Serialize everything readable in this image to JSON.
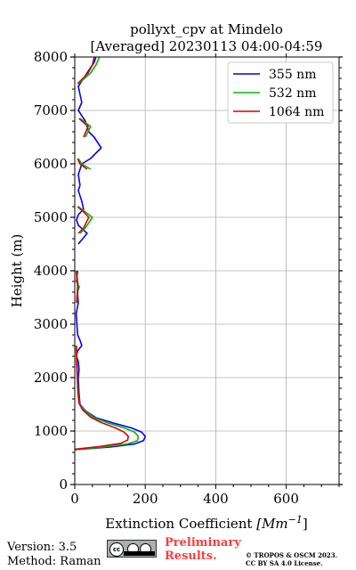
{
  "chart_data": {
    "type": "line",
    "title": "pollyxt_cpv at Mindelo",
    "subtitle": "[Averaged] 20230113 04:00-04:59",
    "xlabel_prefix": "Extinction Coefficient ",
    "xlabel_unit": "[Mm",
    "xlabel_exp": "−1",
    "xlabel_close": "]",
    "ylabel": "Height (m)",
    "xlim": [
      0,
      750
    ],
    "ylim": [
      0,
      8000
    ],
    "xticks": [
      0,
      200,
      400,
      600
    ],
    "xtick_labels": [
      "0",
      "200",
      "400",
      "600"
    ],
    "yticks": [
      0,
      1000,
      2000,
      3000,
      4000,
      5000,
      6000,
      7000,
      8000
    ],
    "ytick_labels": [
      "0",
      "1000",
      "2000",
      "3000",
      "4000",
      "5000",
      "6000",
      "7000",
      "8000"
    ],
    "grid": true,
    "legend_position": "top-right",
    "series": [
      {
        "name": "355 nm",
        "color": "#0000ff",
        "points": [
          [
            0,
            650
          ],
          [
            100,
            700
          ],
          [
            170,
            760
          ],
          [
            195,
            820
          ],
          [
            200,
            900
          ],
          [
            190,
            980
          ],
          [
            160,
            1060
          ],
          [
            110,
            1150
          ],
          [
            60,
            1250
          ],
          [
            30,
            1380
          ],
          [
            15,
            1500
          ],
          [
            12,
            1700
          ],
          [
            10,
            2000
          ],
          [
            12,
            2150
          ],
          [
            10,
            2300
          ],
          [
            5,
            2400
          ],
          [
            8,
            2500
          ],
          [
            20,
            2600
          ],
          [
            15,
            2700
          ],
          [
            8,
            2800
          ],
          [
            6,
            3000
          ],
          [
            4,
            3200
          ],
          [
            10,
            3400
          ],
          [
            8,
            3600
          ],
          [
            12,
            3700
          ],
          [
            5,
            3800
          ],
          [
            8,
            4000
          ],
          [
            10,
            4500
          ],
          [
            35,
            4700
          ],
          [
            10,
            4850
          ],
          [
            5,
            4950
          ],
          [
            10,
            5050
          ],
          [
            25,
            5150
          ],
          [
            20,
            5300
          ],
          [
            10,
            5500
          ],
          [
            15,
            5600
          ],
          [
            10,
            5800
          ],
          [
            20,
            6000
          ],
          [
            45,
            6100
          ],
          [
            75,
            6300
          ],
          [
            55,
            6500
          ],
          [
            40,
            6600
          ],
          [
            30,
            6800
          ],
          [
            10,
            7000
          ],
          [
            20,
            7150
          ],
          [
            15,
            7300
          ],
          [
            10,
            7450
          ],
          [
            25,
            7600
          ],
          [
            40,
            7750
          ],
          [
            55,
            7900
          ],
          [
            60,
            8000
          ]
        ]
      },
      {
        "name": "532 nm",
        "color": "#00bb00",
        "points": [
          [
            0,
            650
          ],
          [
            80,
            700
          ],
          [
            150,
            760
          ],
          [
            178,
            820
          ],
          [
            180,
            900
          ],
          [
            170,
            980
          ],
          [
            140,
            1060
          ],
          [
            95,
            1150
          ],
          [
            55,
            1250
          ],
          [
            28,
            1380
          ],
          [
            14,
            1500
          ],
          [
            10,
            1700
          ],
          [
            8,
            2000
          ],
          [
            6,
            2300
          ],
          [
            5,
            2600
          ],
          [
            4,
            3000
          ],
          [
            6,
            3400
          ],
          [
            10,
            3700
          ],
          [
            5,
            4000
          ],
          [
            15,
            4700
          ],
          [
            30,
            4800
          ],
          [
            50,
            5000
          ],
          [
            30,
            5100
          ],
          [
            10,
            5200
          ],
          [
            45,
            5900
          ],
          [
            20,
            6000
          ],
          [
            10,
            6100
          ],
          [
            30,
            6500
          ],
          [
            45,
            6700
          ],
          [
            15,
            6850
          ],
          [
            10,
            7500
          ],
          [
            45,
            7700
          ],
          [
            60,
            7850
          ],
          [
            70,
            8000
          ]
        ]
      },
      {
        "name": "1064 nm",
        "color": "#dd0000",
        "points": [
          [
            0,
            660
          ],
          [
            70,
            710
          ],
          [
            130,
            770
          ],
          [
            150,
            830
          ],
          [
            152,
            900
          ],
          [
            140,
            980
          ],
          [
            115,
            1060
          ],
          [
            75,
            1160
          ],
          [
            45,
            1260
          ],
          [
            22,
            1400
          ],
          [
            12,
            1520
          ],
          [
            9,
            1700
          ],
          [
            7,
            2000
          ],
          [
            5,
            2300
          ],
          [
            4,
            2600
          ],
          [
            3,
            3000
          ],
          [
            5,
            3400
          ],
          [
            8,
            3700
          ],
          [
            4,
            4000
          ],
          [
            10,
            4700
          ],
          [
            25,
            4800
          ],
          [
            40,
            5000
          ],
          [
            25,
            5100
          ],
          [
            8,
            5200
          ],
          [
            35,
            5900
          ],
          [
            15,
            6000
          ],
          [
            8,
            6100
          ],
          [
            25,
            6500
          ],
          [
            38,
            6700
          ],
          [
            12,
            6850
          ],
          [
            8,
            7500
          ],
          [
            38,
            7700
          ],
          [
            50,
            7850
          ],
          [
            55,
            8000
          ]
        ]
      }
    ]
  },
  "footer": {
    "version": "Version: 3.5",
    "method": "Method: Raman",
    "prelim_line1": "Preliminary",
    "prelim_line2": "Results.",
    "license_line1": "© TROPOS & OSCM 2023.",
    "license_line2": "CC BY SA 4.0 License."
  }
}
